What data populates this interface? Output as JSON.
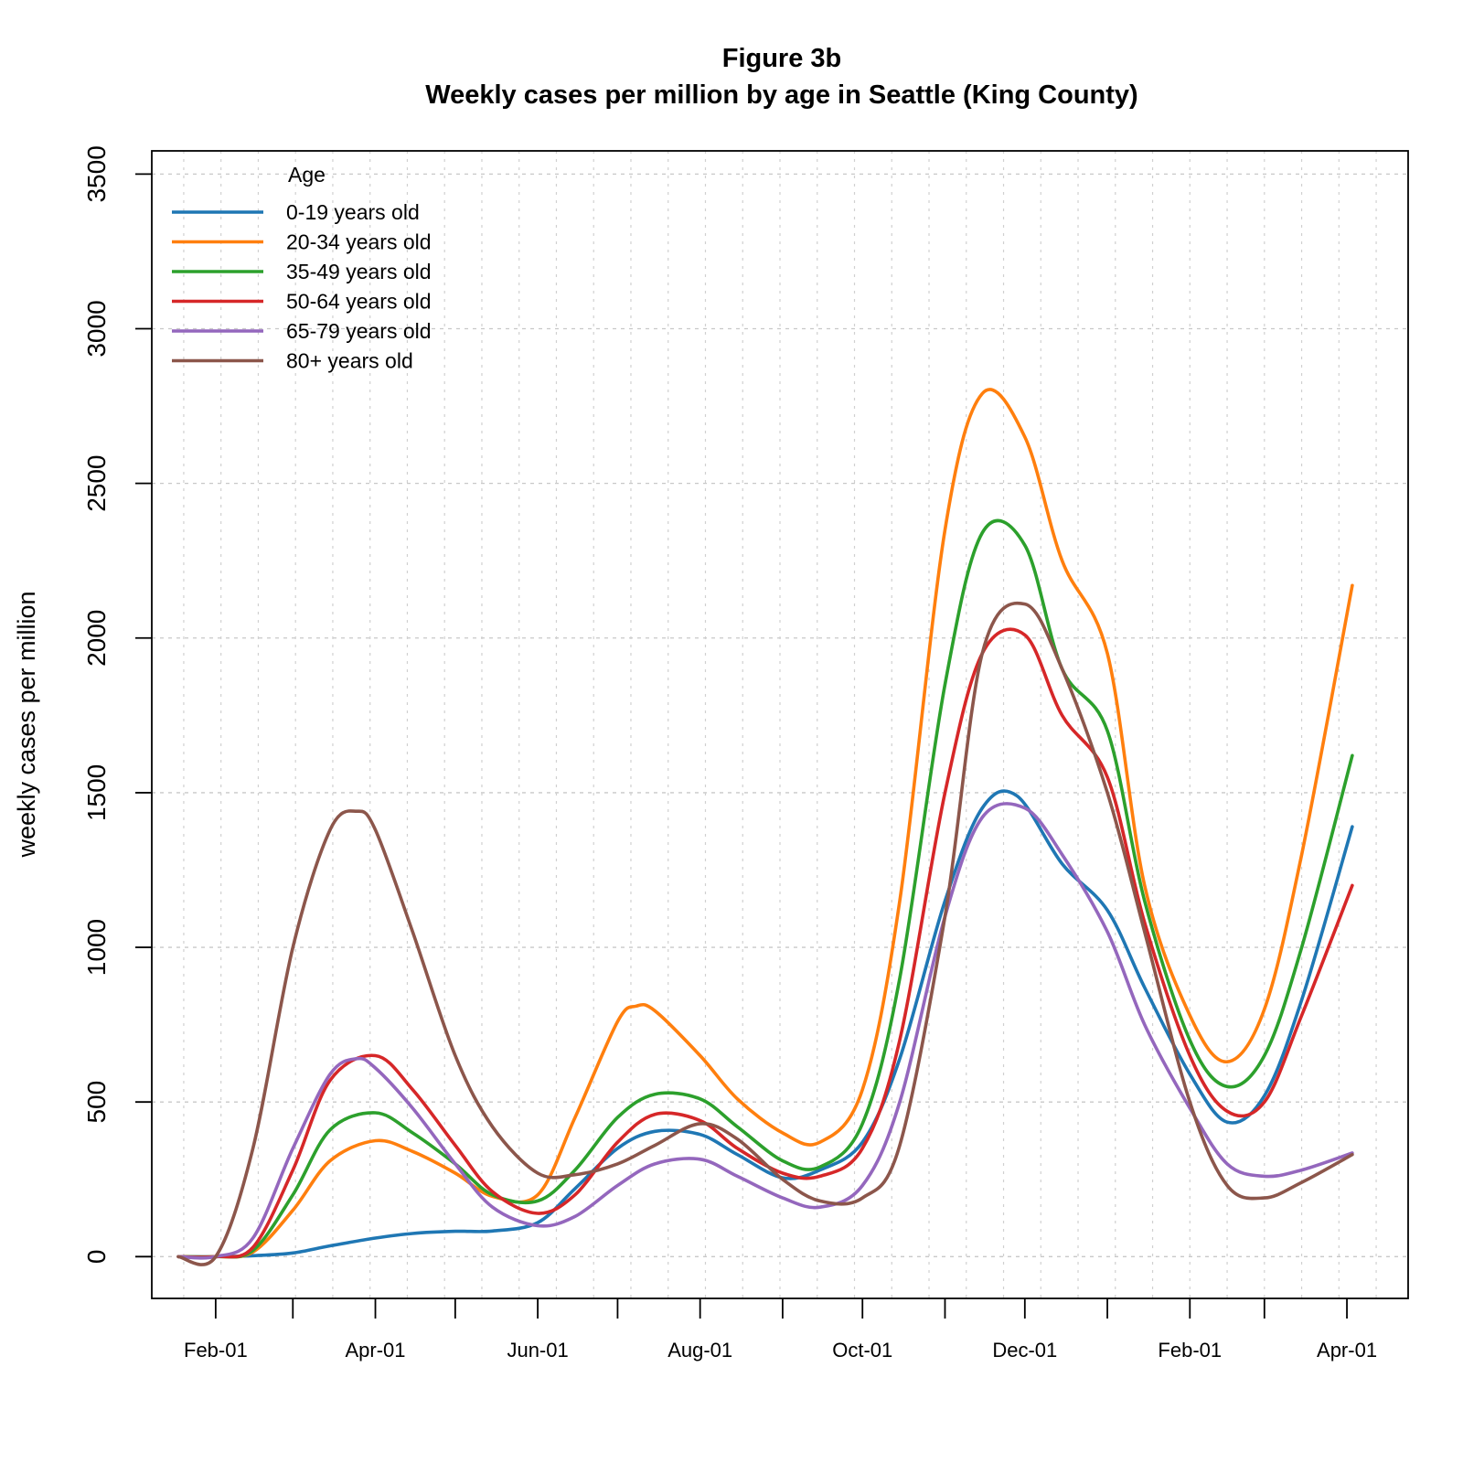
{
  "chart_data": {
    "type": "line",
    "title": "Figure 3b",
    "subtitle": "Weekly cases per million by age in Seattle (King County)",
    "xlabel": "",
    "ylabel": "weekly cases per million",
    "x_axis": {
      "type": "date",
      "range": [
        "2020-01-08",
        "2021-04-24"
      ],
      "tick_labels": [
        "Feb-01",
        "Apr-01",
        "Jun-01",
        "Aug-01",
        "Oct-01",
        "Dec-01",
        "Feb-01",
        "Apr-01"
      ],
      "tick_dates": [
        "2020-02-01",
        "2020-04-01",
        "2020-06-01",
        "2020-08-01",
        "2020-10-01",
        "2020-12-01",
        "2021-02-01",
        "2021-04-01"
      ],
      "minor_tick_dates": [
        "2020-03-01",
        "2020-05-01",
        "2020-07-01",
        "2020-09-01",
        "2020-11-01",
        "2021-01-01",
        "2021-03-01"
      ]
    },
    "y_axis": {
      "range": [
        -135,
        3575
      ],
      "ticks": [
        0,
        500,
        1000,
        1500,
        2000,
        2500,
        3000,
        3500
      ]
    },
    "grid": true,
    "legend": {
      "title": "Age",
      "position": "top-left"
    },
    "series": [
      {
        "name": "0-19 years old",
        "color": "#1f77b4",
        "points": [
          [
            "2020-01-18",
            0
          ],
          [
            "2020-02-01",
            0
          ],
          [
            "2020-02-15",
            3
          ],
          [
            "2020-03-01",
            12
          ],
          [
            "2020-03-15",
            35
          ],
          [
            "2020-04-01",
            60
          ],
          [
            "2020-04-15",
            75
          ],
          [
            "2020-05-01",
            82
          ],
          [
            "2020-05-15",
            83
          ],
          [
            "2020-06-01",
            110
          ],
          [
            "2020-06-15",
            220
          ],
          [
            "2020-07-01",
            350
          ],
          [
            "2020-07-15",
            405
          ],
          [
            "2020-08-01",
            395
          ],
          [
            "2020-08-15",
            330
          ],
          [
            "2020-09-01",
            255
          ],
          [
            "2020-09-15",
            280
          ],
          [
            "2020-10-01",
            370
          ],
          [
            "2020-10-15",
            640
          ],
          [
            "2020-11-01",
            1150
          ],
          [
            "2020-11-15",
            1450
          ],
          [
            "2020-11-28",
            1490
          ],
          [
            "2020-12-15",
            1270
          ],
          [
            "2021-01-01",
            1120
          ],
          [
            "2021-01-15",
            870
          ],
          [
            "2021-02-01",
            590
          ],
          [
            "2021-02-15",
            435
          ],
          [
            "2021-03-01",
            520
          ],
          [
            "2021-03-15",
            830
          ],
          [
            "2021-04-03",
            1390
          ]
        ]
      },
      {
        "name": "20-34 years old",
        "color": "#ff7f0e",
        "points": [
          [
            "2020-01-18",
            0
          ],
          [
            "2020-02-01",
            0
          ],
          [
            "2020-02-15",
            15
          ],
          [
            "2020-03-01",
            150
          ],
          [
            "2020-03-15",
            310
          ],
          [
            "2020-04-01",
            375
          ],
          [
            "2020-04-15",
            340
          ],
          [
            "2020-05-01",
            270
          ],
          [
            "2020-05-15",
            195
          ],
          [
            "2020-06-01",
            200
          ],
          [
            "2020-06-15",
            450
          ],
          [
            "2020-07-01",
            760
          ],
          [
            "2020-07-08",
            810
          ],
          [
            "2020-07-15",
            795
          ],
          [
            "2020-08-01",
            650
          ],
          [
            "2020-08-15",
            510
          ],
          [
            "2020-09-01",
            400
          ],
          [
            "2020-09-15",
            370
          ],
          [
            "2020-10-01",
            540
          ],
          [
            "2020-10-15",
            1150
          ],
          [
            "2020-11-01",
            2350
          ],
          [
            "2020-11-15",
            2790
          ],
          [
            "2020-12-01",
            2650
          ],
          [
            "2020-12-15",
            2250
          ],
          [
            "2021-01-01",
            1950
          ],
          [
            "2021-01-15",
            1200
          ],
          [
            "2021-02-01",
            780
          ],
          [
            "2021-02-15",
            630
          ],
          [
            "2021-03-01",
            800
          ],
          [
            "2021-03-15",
            1300
          ],
          [
            "2021-04-03",
            2170
          ]
        ]
      },
      {
        "name": "35-49 years old",
        "color": "#2ca02c",
        "points": [
          [
            "2020-01-18",
            0
          ],
          [
            "2020-02-01",
            0
          ],
          [
            "2020-02-15",
            20
          ],
          [
            "2020-03-01",
            200
          ],
          [
            "2020-03-15",
            410
          ],
          [
            "2020-04-01",
            465
          ],
          [
            "2020-04-15",
            400
          ],
          [
            "2020-05-01",
            300
          ],
          [
            "2020-05-15",
            200
          ],
          [
            "2020-06-01",
            180
          ],
          [
            "2020-06-15",
            280
          ],
          [
            "2020-07-01",
            450
          ],
          [
            "2020-07-15",
            525
          ],
          [
            "2020-08-01",
            510
          ],
          [
            "2020-08-15",
            420
          ],
          [
            "2020-09-01",
            310
          ],
          [
            "2020-09-15",
            290
          ],
          [
            "2020-10-01",
            430
          ],
          [
            "2020-10-15",
            900
          ],
          [
            "2020-11-01",
            1850
          ],
          [
            "2020-11-15",
            2340
          ],
          [
            "2020-12-01",
            2300
          ],
          [
            "2020-12-15",
            1900
          ],
          [
            "2021-01-01",
            1700
          ],
          [
            "2021-01-15",
            1150
          ],
          [
            "2021-02-01",
            700
          ],
          [
            "2021-02-15",
            550
          ],
          [
            "2021-03-01",
            650
          ],
          [
            "2021-03-15",
            1000
          ],
          [
            "2021-04-03",
            1620
          ]
        ]
      },
      {
        "name": "50-64 years old",
        "color": "#d62728",
        "points": [
          [
            "2020-01-18",
            0
          ],
          [
            "2020-02-01",
            0
          ],
          [
            "2020-02-15",
            30
          ],
          [
            "2020-03-01",
            280
          ],
          [
            "2020-03-15",
            570
          ],
          [
            "2020-04-01",
            650
          ],
          [
            "2020-04-15",
            540
          ],
          [
            "2020-05-01",
            360
          ],
          [
            "2020-05-15",
            210
          ],
          [
            "2020-06-01",
            140
          ],
          [
            "2020-06-15",
            200
          ],
          [
            "2020-07-01",
            370
          ],
          [
            "2020-07-15",
            460
          ],
          [
            "2020-08-01",
            440
          ],
          [
            "2020-08-15",
            350
          ],
          [
            "2020-09-01",
            270
          ],
          [
            "2020-09-15",
            260
          ],
          [
            "2020-10-01",
            350
          ],
          [
            "2020-10-15",
            700
          ],
          [
            "2020-11-01",
            1500
          ],
          [
            "2020-11-15",
            1950
          ],
          [
            "2020-12-01",
            2010
          ],
          [
            "2020-12-15",
            1750
          ],
          [
            "2021-01-01",
            1550
          ],
          [
            "2021-01-15",
            1080
          ],
          [
            "2021-02-01",
            650
          ],
          [
            "2021-02-15",
            470
          ],
          [
            "2021-03-01",
            500
          ],
          [
            "2021-03-15",
            780
          ],
          [
            "2021-04-03",
            1200
          ]
        ]
      },
      {
        "name": "65-79 years old",
        "color": "#9467bd",
        "points": [
          [
            "2020-01-18",
            0
          ],
          [
            "2020-02-01",
            0
          ],
          [
            "2020-02-15",
            60
          ],
          [
            "2020-03-01",
            350
          ],
          [
            "2020-03-15",
            590
          ],
          [
            "2020-03-25",
            640
          ],
          [
            "2020-04-01",
            610
          ],
          [
            "2020-04-15",
            480
          ],
          [
            "2020-05-01",
            300
          ],
          [
            "2020-05-15",
            160
          ],
          [
            "2020-06-01",
            100
          ],
          [
            "2020-06-15",
            130
          ],
          [
            "2020-07-01",
            230
          ],
          [
            "2020-07-15",
            300
          ],
          [
            "2020-08-01",
            315
          ],
          [
            "2020-08-15",
            260
          ],
          [
            "2020-09-01",
            190
          ],
          [
            "2020-09-15",
            160
          ],
          [
            "2020-10-01",
            230
          ],
          [
            "2020-10-15",
            500
          ],
          [
            "2020-11-01",
            1100
          ],
          [
            "2020-11-15",
            1420
          ],
          [
            "2020-12-01",
            1450
          ],
          [
            "2020-12-15",
            1300
          ],
          [
            "2021-01-01",
            1050
          ],
          [
            "2021-01-15",
            750
          ],
          [
            "2021-02-01",
            480
          ],
          [
            "2021-02-15",
            300
          ],
          [
            "2021-03-01",
            260
          ],
          [
            "2021-03-15",
            280
          ],
          [
            "2021-04-03",
            335
          ]
        ]
      },
      {
        "name": "80+ years old",
        "color": "#8c564b",
        "points": [
          [
            "2020-01-18",
            0
          ],
          [
            "2020-02-01",
            0
          ],
          [
            "2020-02-15",
            350
          ],
          [
            "2020-03-01",
            1000
          ],
          [
            "2020-03-15",
            1380
          ],
          [
            "2020-03-25",
            1440
          ],
          [
            "2020-04-01",
            1380
          ],
          [
            "2020-04-15",
            1050
          ],
          [
            "2020-05-01",
            650
          ],
          [
            "2020-05-15",
            420
          ],
          [
            "2020-06-01",
            270
          ],
          [
            "2020-06-15",
            265
          ],
          [
            "2020-07-01",
            300
          ],
          [
            "2020-07-15",
            360
          ],
          [
            "2020-08-01",
            430
          ],
          [
            "2020-08-15",
            380
          ],
          [
            "2020-09-01",
            250
          ],
          [
            "2020-09-15",
            180
          ],
          [
            "2020-10-01",
            190
          ],
          [
            "2020-10-15",
            360
          ],
          [
            "2020-11-01",
            1100
          ],
          [
            "2020-11-15",
            1950
          ],
          [
            "2020-12-01",
            2110
          ],
          [
            "2020-12-15",
            1900
          ],
          [
            "2021-01-01",
            1500
          ],
          [
            "2021-01-15",
            1050
          ],
          [
            "2021-02-01",
            500
          ],
          [
            "2021-02-15",
            230
          ],
          [
            "2021-03-01",
            190
          ],
          [
            "2021-03-15",
            240
          ],
          [
            "2021-04-03",
            330
          ]
        ]
      }
    ]
  }
}
